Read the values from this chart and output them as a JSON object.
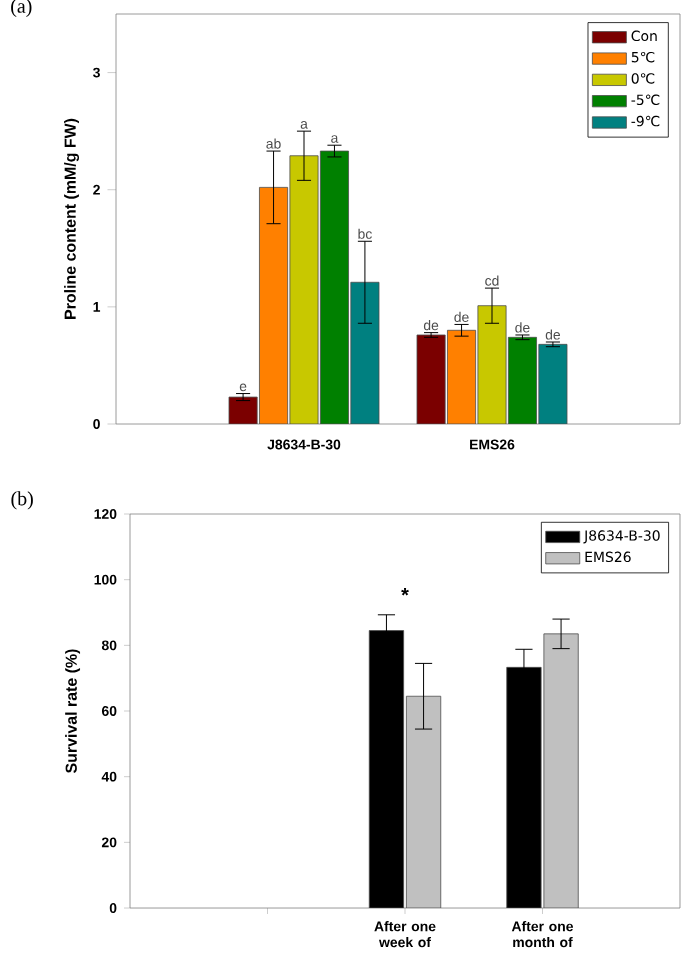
{
  "chart_data": [
    {
      "type": "bar",
      "title": "(a)",
      "ylabel": "Proline content (mM/g FW)",
      "categories": [
        "J8634-B-30",
        "EMS26"
      ],
      "ylim": [
        0,
        3.5
      ],
      "yticks": [
        0,
        1,
        2,
        3
      ],
      "legend": "top right",
      "series": [
        {
          "name": "Con",
          "color": "#7b0000",
          "values": [
            0.23,
            0.76
          ],
          "errors": [
            0.03,
            0.02
          ],
          "value_labels": [
            "e",
            "de"
          ]
        },
        {
          "name": "5℃",
          "color": "#ff8000",
          "values": [
            2.02,
            0.8
          ],
          "errors": [
            0.31,
            0.05
          ],
          "value_labels": [
            "ab",
            "de"
          ]
        },
        {
          "name": "0℃",
          "color": "#c8c800",
          "values": [
            2.29,
            1.01
          ],
          "errors": [
            0.21,
            0.15
          ],
          "value_labels": [
            "a",
            "cd"
          ]
        },
        {
          "name": "-5℃",
          "color": "#008000",
          "values": [
            2.33,
            0.74
          ],
          "errors": [
            0.05,
            0.02
          ],
          "value_labels": [
            "a",
            "de"
          ]
        },
        {
          "name": "-9℃",
          "color": "#008080",
          "values": [
            1.21,
            0.68
          ],
          "errors": [
            0.35,
            0.02
          ],
          "value_labels": [
            "bc",
            "de"
          ]
        }
      ]
    },
    {
      "type": "bar",
      "title": "(b)",
      "ylabel": "Survival rate (%)",
      "categories": [
        null,
        "After one week of",
        "After one month of"
      ],
      "ylim": [
        0,
        120
      ],
      "yticks": [
        0,
        20,
        40,
        60,
        80,
        100,
        120
      ],
      "legend": "top right",
      "series": [
        {
          "name": "J8634-B-30",
          "color": "#000000",
          "values": [
            null,
            84.5,
            73.3
          ],
          "errors": [
            null,
            4.8,
            5.5
          ]
        },
        {
          "name": "EMS26",
          "color": "#c0c0c0",
          "values": [
            null,
            64.5,
            83.5
          ],
          "errors": [
            null,
            10,
            4.5
          ]
        }
      ],
      "annotations": [
        "*"
      ]
    }
  ]
}
